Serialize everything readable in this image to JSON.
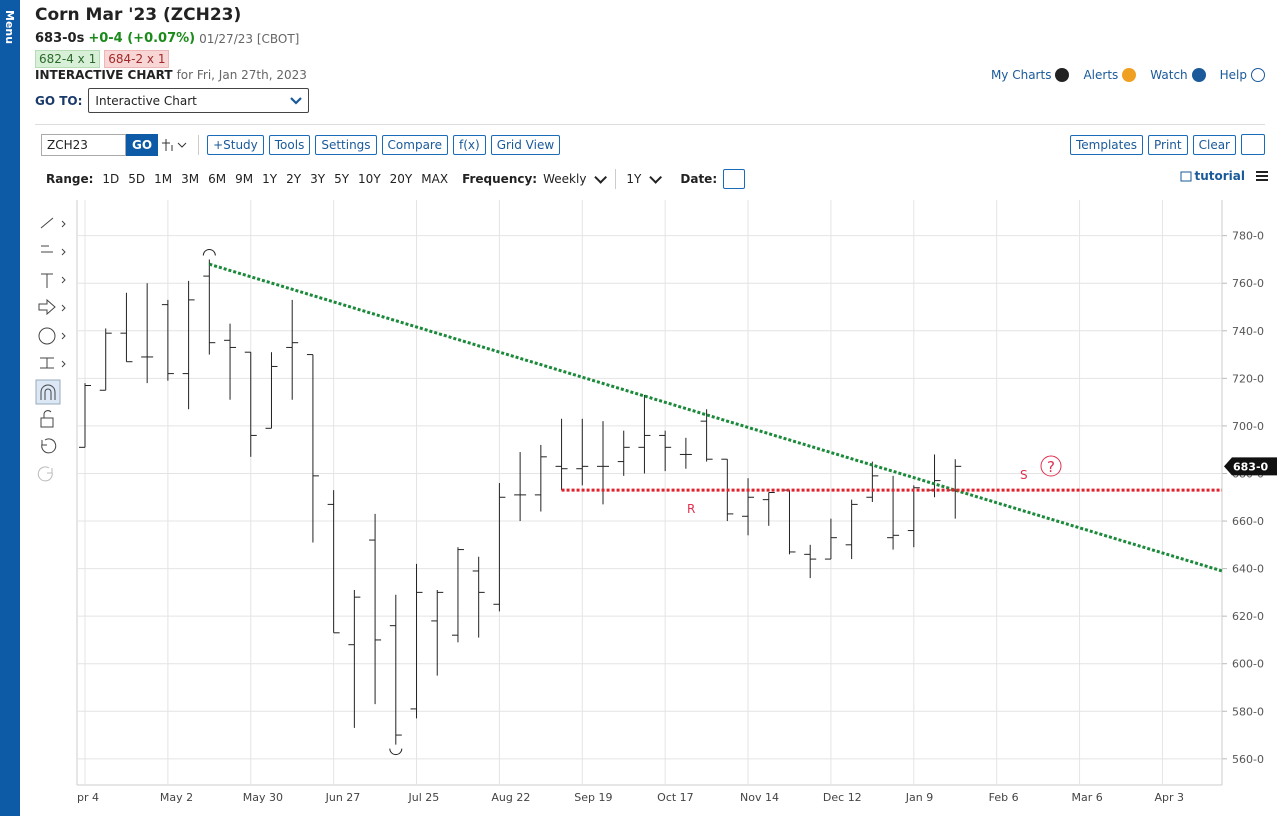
{
  "sidebar": {
    "label": "Menu"
  },
  "header": {
    "title": "Corn Mar '23 (ZCH23)",
    "price": "683-0s",
    "change": "+0-4 (+0.07%)",
    "date": "01/27/23 [CBOT]",
    "bid": "682-4 x 1",
    "ask": "684-2 x 1",
    "chart_label": "INTERACTIVE CHART",
    "chart_for": "for Fri, Jan 27th, 2023",
    "goto_label": "GO TO:",
    "goto_value": "Interactive Chart"
  },
  "top_links": [
    "My Charts",
    "Alerts",
    "Watch",
    "Help"
  ],
  "toolbar": {
    "symbol": "ZCH23",
    "go": "GO",
    "buttons": [
      "+Study",
      "Tools",
      "Settings",
      "Compare",
      "f(x)",
      "Grid View"
    ],
    "right_buttons": [
      "Templates",
      "Print",
      "Clear"
    ]
  },
  "range_bar": {
    "range_label": "Range:",
    "ranges": [
      "1D",
      "5D",
      "1M",
      "3M",
      "6M",
      "9M",
      "1Y",
      "2Y",
      "3Y",
      "5Y",
      "10Y",
      "20Y",
      "MAX"
    ],
    "frequency_label": "Frequency:",
    "frequency": "Weekly",
    "period": "1Y",
    "date_label": "Date:",
    "tutorial": "tutorial"
  },
  "chart_data": {
    "type": "ohlc",
    "color": "#222222",
    "categories": [
      "pr 4",
      null,
      null,
      null,
      "May 2",
      null,
      null,
      null,
      "May 30",
      null,
      null,
      null,
      "Jun 27",
      null,
      null,
      null,
      "Jul 25",
      null,
      null,
      null,
      "Aug 22",
      null,
      null,
      null,
      "Sep 19",
      null,
      null,
      null,
      "Oct 17",
      null,
      null,
      null,
      "Nov 14",
      null,
      null,
      null,
      "Dec 12",
      null,
      null,
      null,
      "Jan 9",
      null,
      null,
      null,
      "Feb 6",
      null,
      null,
      null,
      "Mar 6",
      null,
      null,
      null,
      "Apr 3",
      null,
      null
    ],
    "open": [
      691,
      715,
      739,
      729,
      751,
      722,
      763,
      736,
      731,
      699,
      733,
      730,
      667,
      608,
      652,
      616,
      581,
      618,
      612,
      639,
      625,
      671,
      671,
      683,
      682,
      683,
      685,
      691,
      696,
      688,
      702,
      686,
      662,
      669,
      673,
      646,
      644,
      650,
      670,
      653,
      656,
      673,
      673,
      null,
      null,
      null,
      null,
      null,
      null,
      null,
      null,
      null,
      null,
      null,
      null
    ],
    "high": [
      718,
      741,
      756,
      760,
      753,
      761,
      770,
      743,
      731,
      731,
      753,
      730,
      673,
      631,
      663,
      629,
      642,
      631,
      649,
      645,
      676,
      689,
      692,
      703,
      703,
      702,
      698,
      713,
      698,
      695,
      707,
      686,
      678,
      672,
      673,
      650,
      661,
      669,
      685,
      679,
      675,
      688,
      686,
      null,
      null,
      null,
      null,
      null,
      null,
      null,
      null,
      null,
      null,
      null,
      null
    ],
    "low": [
      691,
      715,
      727,
      718,
      719,
      707,
      730,
      711,
      687,
      699,
      711,
      651,
      613,
      573,
      583,
      566,
      577,
      595,
      609,
      611,
      622,
      660,
      664,
      673,
      675,
      667,
      679,
      680,
      681,
      682,
      685,
      660,
      654,
      658,
      646,
      636,
      644,
      644,
      668,
      648,
      649,
      670,
      661,
      null,
      null,
      null,
      null,
      null,
      null,
      null,
      null,
      null,
      null,
      null,
      null
    ],
    "close": [
      717,
      739,
      727,
      729,
      722,
      753,
      735,
      733,
      696,
      725,
      735,
      679,
      613,
      628,
      610,
      570,
      630,
      630,
      648,
      630,
      670,
      671,
      687,
      682,
      683,
      683,
      691,
      696,
      691,
      688,
      686,
      663,
      670,
      672,
      647,
      644,
      653,
      667,
      679,
      654,
      674,
      677,
      683,
      null,
      null,
      null,
      null,
      null,
      null,
      null,
      null,
      null,
      null,
      null,
      null
    ],
    "ylim": [
      549,
      795
    ],
    "yticks": [
      {
        "value": 560,
        "label": "560-0"
      },
      {
        "value": 580,
        "label": "580-0"
      },
      {
        "value": 600,
        "label": "600-0"
      },
      {
        "value": 620,
        "label": "620-0"
      },
      {
        "value": 640,
        "label": "640-0"
      },
      {
        "value": 660,
        "label": "660-0"
      },
      {
        "value": 680,
        "label": "680-0"
      },
      {
        "value": 700,
        "label": "700-0"
      },
      {
        "value": 720,
        "label": "720-0"
      },
      {
        "value": 740,
        "label": "740-0"
      },
      {
        "value": 760,
        "label": "760-0"
      },
      {
        "value": 780,
        "label": "780-0"
      }
    ],
    "grid": true,
    "last_price": {
      "value": 683,
      "label": "683-0"
    },
    "trendline": {
      "color": "#1a8a3a",
      "start_index": 6,
      "start_value": 768,
      "end_value": 639
    },
    "level": {
      "color": "#e0202a",
      "start_index": 23,
      "value": 673
    },
    "annotations": [
      {
        "text": "R"
      },
      {
        "text": "S"
      },
      {
        "text": "?"
      }
    ]
  }
}
